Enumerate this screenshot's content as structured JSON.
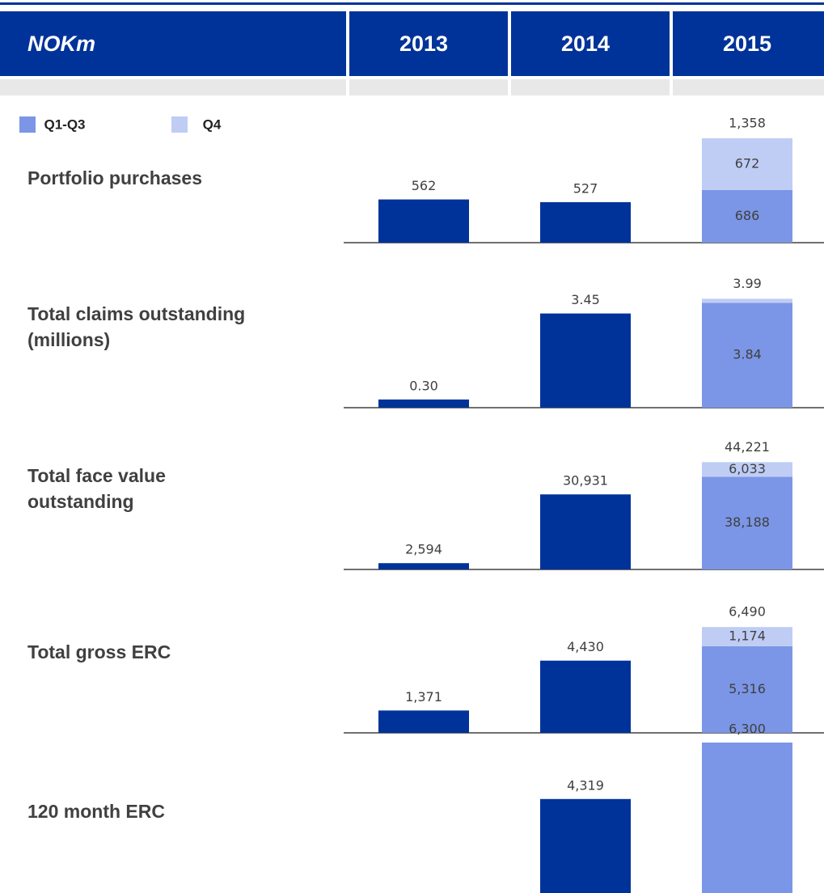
{
  "header": {
    "label": "NOKm",
    "columns": [
      "2013",
      "2014",
      "2015"
    ]
  },
  "legend": [
    {
      "name": "Q1-Q3",
      "color": "#7b96e6"
    },
    {
      "name": "Q4",
      "color": "#bfcdf5"
    }
  ],
  "chart_data": [
    {
      "type": "bar",
      "title": "Portfolio purchases",
      "ylim": [
        0,
        1420
      ],
      "series": [
        {
          "color": "#003399",
          "values": [
            562,
            527,
            null
          ],
          "value_labels": [
            "562",
            "527",
            null
          ]
        },
        {
          "color": "#7b96e6",
          "values": [
            null,
            null,
            686
          ],
          "value_labels": [
            null,
            null,
            "686"
          ]
        },
        {
          "color": "#bfcdf5",
          "values": [
            null,
            null,
            672
          ],
          "value_labels": [
            null,
            null,
            "672"
          ]
        }
      ],
      "totals": [
        null,
        null,
        1358
      ],
      "totals_labels": [
        null,
        null,
        "1,358"
      ]
    },
    {
      "type": "bar",
      "title": [
        "Total claims outstanding",
        "(millions)"
      ],
      "ylim": [
        0,
        4
      ],
      "series": [
        {
          "color": "#003399",
          "values": [
            0.3,
            3.45,
            null
          ],
          "value_labels": [
            "0.30",
            "3.45",
            null
          ]
        },
        {
          "color": "#7b96e6",
          "values": [
            null,
            null,
            3.84
          ],
          "value_labels": [
            null,
            null,
            "3.84"
          ]
        },
        {
          "color": "#bfcdf5",
          "values": [
            null,
            null,
            0.15
          ],
          "value_labels": [
            null,
            null,
            null
          ]
        }
      ],
      "totals": [
        null,
        null,
        3.99
      ],
      "totals_labels": [
        null,
        null,
        "3.99"
      ]
    },
    {
      "type": "bar",
      "title": [
        "Total face value",
        "outstanding"
      ],
      "ylim": [
        0,
        45000
      ],
      "series": [
        {
          "color": "#003399",
          "values": [
            2594,
            30931,
            null
          ],
          "value_labels": [
            "2,594",
            "30,931",
            null
          ]
        },
        {
          "color": "#7b96e6",
          "values": [
            null,
            null,
            38188
          ],
          "value_labels": [
            null,
            null,
            "38,188"
          ]
        },
        {
          "color": "#bfcdf5",
          "values": [
            null,
            null,
            6033
          ],
          "value_labels": [
            null,
            null,
            "6,033"
          ]
        }
      ],
      "totals": [
        null,
        null,
        44221
      ],
      "totals_labels": [
        null,
        null,
        "44,221"
      ]
    },
    {
      "type": "bar",
      "title": "Total gross ERC",
      "ylim": [
        0,
        6500
      ],
      "series": [
        {
          "color": "#003399",
          "values": [
            1371,
            4430,
            null
          ],
          "value_labels": [
            "1,371",
            "4,430",
            null
          ]
        },
        {
          "color": "#7b96e6",
          "values": [
            null,
            null,
            5316
          ],
          "value_labels": [
            null,
            null,
            "5,316"
          ]
        },
        {
          "color": "#bfcdf5",
          "values": [
            null,
            null,
            1174
          ],
          "value_labels": [
            null,
            null,
            "1,174"
          ]
        }
      ],
      "totals": [
        null,
        null,
        6490
      ],
      "totals_labels": [
        null,
        null,
        "6,490"
      ]
    },
    {
      "type": "bar",
      "title": "120 month ERC",
      "ylim": [
        0,
        6300
      ],
      "series": [
        {
          "color": "#003399",
          "values": [
            null,
            4319,
            null
          ],
          "value_labels": [
            null,
            "4,319",
            null
          ]
        },
        {
          "color": "#7b96e6",
          "values": [
            null,
            null,
            6300
          ],
          "value_labels": [
            null,
            null,
            "6,300"
          ]
        }
      ]
    }
  ]
}
